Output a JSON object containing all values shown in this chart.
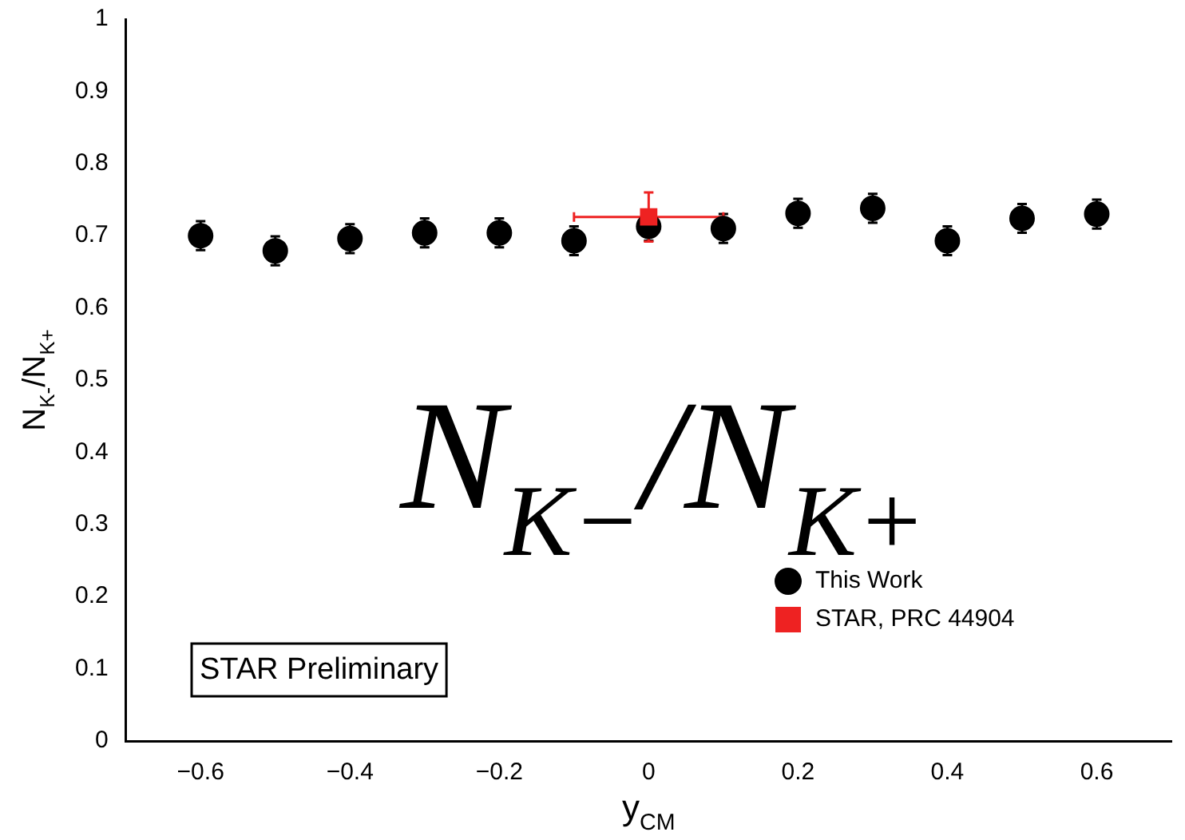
{
  "chart_data": {
    "type": "scatter",
    "xlabel": "y$_{CM}$",
    "ylabel": "N$_{K-}$/N$_{K+}$",
    "annotations": [
      "N$_{K−}$/N$_{K+}$",
      "STAR Preliminary"
    ],
    "xlim": [
      -0.7,
      0.7
    ],
    "xticks": [
      {
        "value": -0.6,
        "label": "−0.6"
      },
      {
        "value": -0.4,
        "label": "−0.4"
      },
      {
        "value": -0.2,
        "label": "−0.2"
      },
      0,
      0.2,
      0.4,
      0.6
    ],
    "ylim": [
      0,
      1
    ],
    "yticks": [
      0,
      0.1,
      0.2,
      0.3,
      0.4,
      0.5,
      0.6,
      0.7,
      0.8,
      0.9,
      1
    ],
    "grid": false,
    "legend": "bottom right",
    "series": [
      {
        "name": "This Work",
        "color": "#000000",
        "marker": "circle",
        "x": [
          -0.6,
          -0.5,
          -0.4,
          -0.3,
          -0.2,
          -0.1,
          0,
          0.1,
          0.2,
          0.3,
          0.4,
          0.5,
          0.6
        ],
        "values": [
          0.7,
          0.679,
          0.696,
          0.704,
          0.704,
          0.693,
          0.713,
          0.71,
          0.731,
          0.738,
          0.693,
          0.724,
          0.73
        ],
        "errors": [
          0.02,
          0.02,
          0.02,
          0.02,
          0.02,
          0.02,
          0.02,
          0.02,
          0.02,
          0.02,
          0.02,
          0.02,
          0.02
        ]
      },
      {
        "name": "STAR, PRC 44904",
        "color": "#ee2222",
        "marker": "square",
        "x": [
          0
        ],
        "values": [
          0.726
        ],
        "errors": [
          0.034
        ],
        "xerrors": [
          0.1
        ]
      }
    ]
  }
}
